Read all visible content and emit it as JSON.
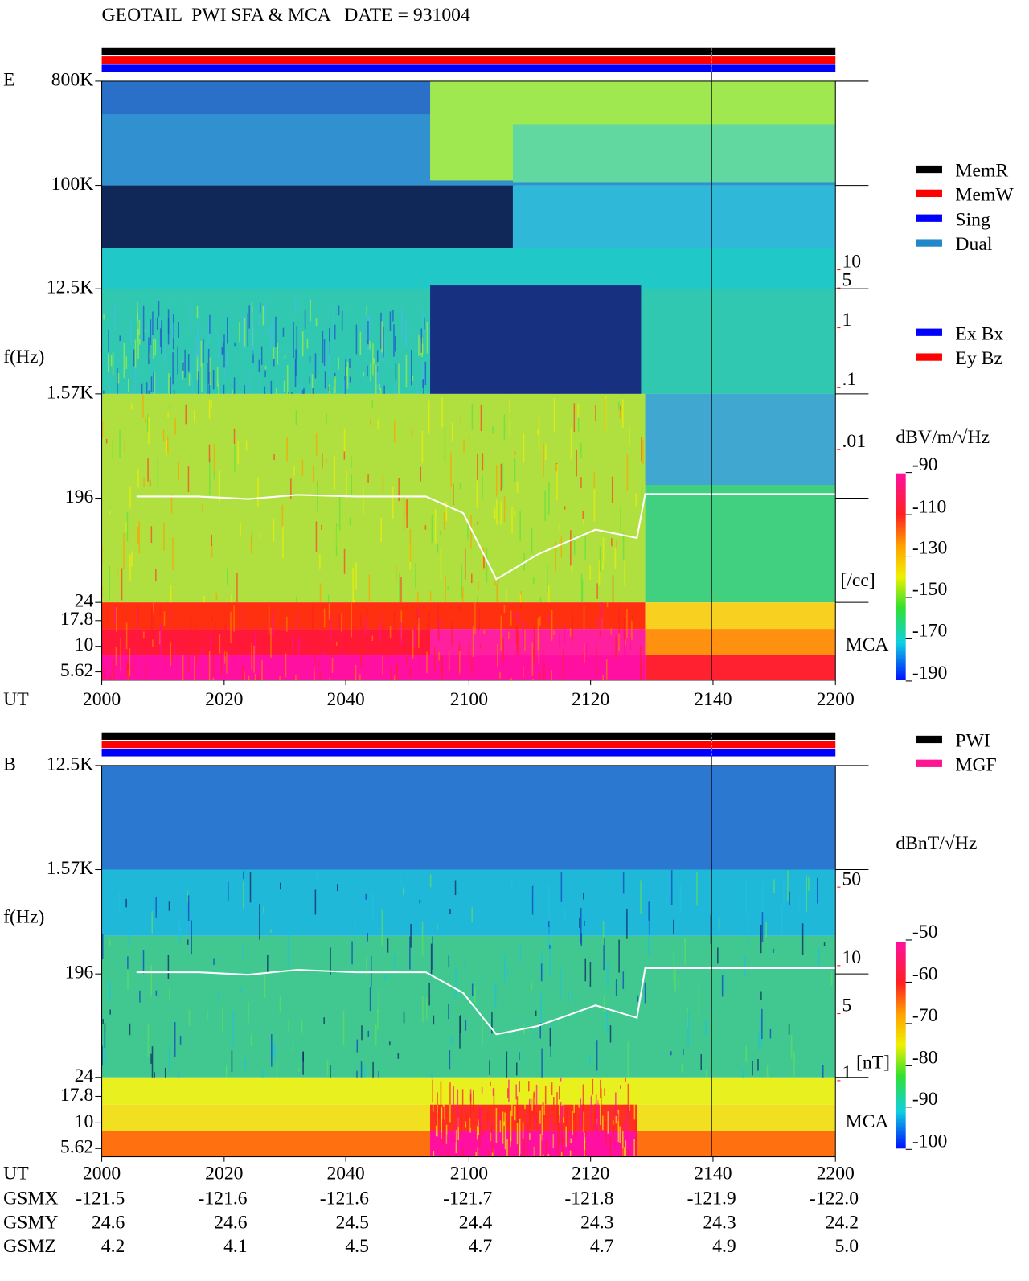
{
  "header": {
    "title": "GEOTAIL  PWI SFA & MCA   DATE = 931004"
  },
  "panels": [
    {
      "label": "E",
      "freq_ticks": [
        "800K",
        "100K",
        "12.5K",
        "1.57K",
        "196",
        "24",
        "17.8",
        "10",
        "5.62"
      ],
      "y_label": "f(Hz)",
      "time_label": "UT",
      "time_ticks": [
        "2000",
        "2020",
        "2040",
        "2100",
        "2120",
        "2140",
        "2200"
      ],
      "mode_legend": [
        {
          "name": "MemR",
          "color": "#000000"
        },
        {
          "name": "MemW",
          "color": "#ff0000"
        },
        {
          "name": "Sing",
          "color": "#0000ff"
        },
        {
          "name": "Dual",
          "color": "#2088c8"
        }
      ],
      "component_legend": [
        {
          "name": "Ex Bx",
          "color": "#0000ff"
        },
        {
          "name": "Ey Bz",
          "color": "#ff0000"
        }
      ],
      "scale_ticks": [
        "10",
        "5",
        "1",
        ".1",
        ".01"
      ],
      "scale_unit": "[/cc]",
      "colorbar_title": "dBV/m/√Hz",
      "colorbar_ticks": [
        "-90",
        "-110",
        "-130",
        "-150",
        "-170",
        "-190"
      ],
      "mca_label": "MCA"
    },
    {
      "label": "B",
      "freq_ticks": [
        "12.5K",
        "1.57K",
        "196",
        "24",
        "17.8",
        "10",
        "5.62"
      ],
      "y_label": "f(Hz)",
      "time_label": "UT",
      "time_ticks": [
        "2000",
        "2020",
        "2040",
        "2100",
        "2120",
        "2140",
        "2200"
      ],
      "mode_legend": [
        {
          "name": "PWI",
          "color": "#000000"
        },
        {
          "name": "MGF",
          "color": "#ff1493"
        }
      ],
      "scale_ticks": [
        "50",
        "10",
        "5",
        "1"
      ],
      "scale_unit": "[nT]",
      "colorbar_title": "dBnT/√Hz",
      "colorbar_ticks": [
        "-50",
        "-60",
        "-70",
        "-80",
        "-90",
        "-100"
      ],
      "mca_label": "MCA"
    }
  ],
  "orbit": {
    "rows": [
      {
        "label": "GSMX",
        "values": [
          "-121.5",
          "-121.6",
          "-121.6",
          "-121.7",
          "-121.8",
          "-121.9",
          "-122.0"
        ]
      },
      {
        "label": "GSMY",
        "values": [
          "24.6",
          "24.6",
          "24.5",
          "24.4",
          "24.3",
          "24.3",
          "24.2"
        ]
      },
      {
        "label": "GSMZ",
        "values": [
          "4.2",
          "4.1",
          "4.5",
          "4.7",
          "4.7",
          "4.9",
          "5.0"
        ]
      }
    ]
  }
}
